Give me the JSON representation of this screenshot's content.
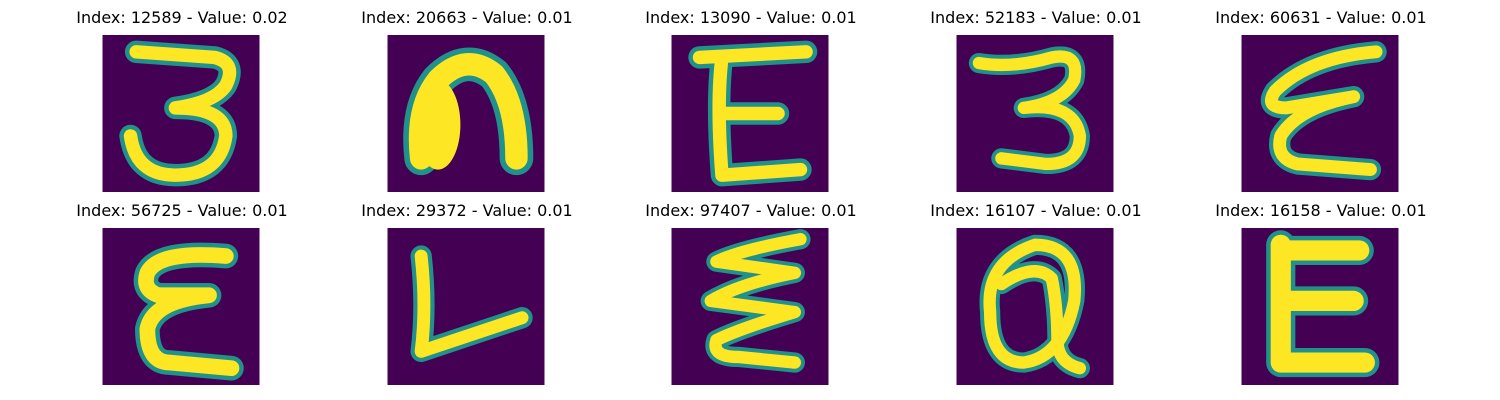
{
  "colors": {
    "background": "#440154",
    "mid": "#21918c",
    "stroke": "#fde725"
  },
  "samples": [
    {
      "title": "Index: 12589 - Value: 0.02",
      "glyph": "3-hooked-top"
    },
    {
      "title": "Index: 20663 - Value: 0.01",
      "glyph": "n-thick-blob"
    },
    {
      "title": "Index: 13090 - Value: 0.01",
      "glyph": "E-with-bar"
    },
    {
      "title": "Index: 52183 - Value: 0.01",
      "glyph": "3-curvy"
    },
    {
      "title": "Index: 60631 - Value: 0.01",
      "glyph": "epsilon-zigzag"
    },
    {
      "title": "Index: 56725 - Value: 0.01",
      "glyph": "E-rounded"
    },
    {
      "title": "Index: 29372 - Value: 0.01",
      "glyph": "L-slanted"
    },
    {
      "title": "Index: 97407 - Value: 0.01",
      "glyph": "zigzag-wave"
    },
    {
      "title": "Index: 16107 - Value: 0.01",
      "glyph": "Q-loop"
    },
    {
      "title": "Index: 16158 - Value: 0.01",
      "glyph": "E-bold"
    }
  ]
}
